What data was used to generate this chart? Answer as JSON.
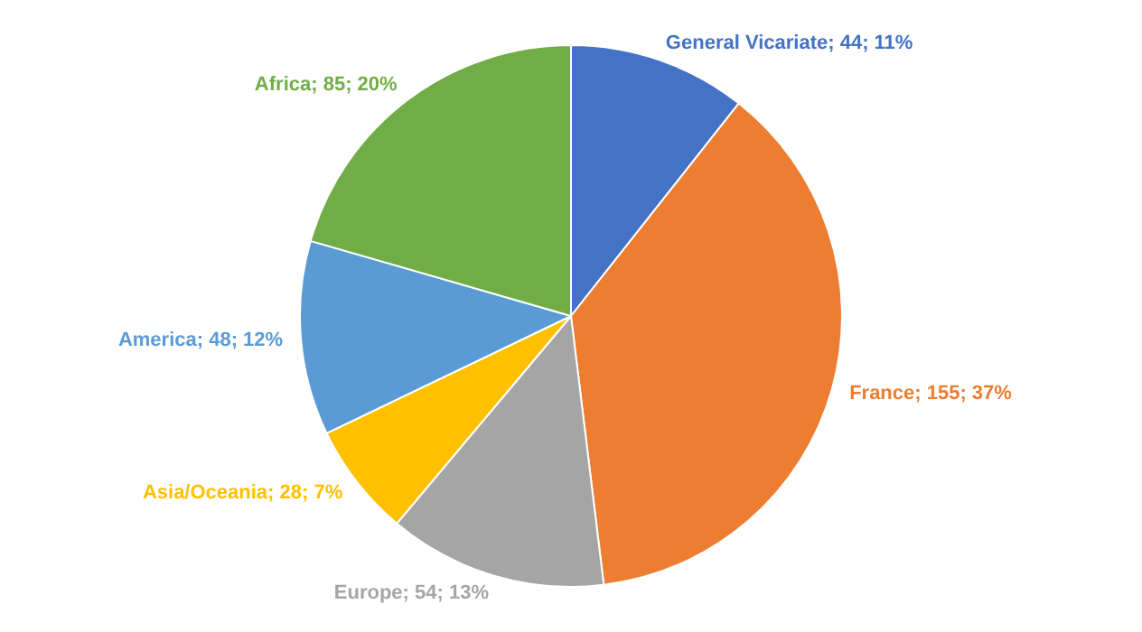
{
  "chart_data": {
    "type": "pie",
    "categories": [
      "General Vicariate",
      "France",
      "Europe",
      "Asia/Oceania",
      "America",
      "Africa"
    ],
    "values": [
      44,
      155,
      54,
      28,
      48,
      85
    ],
    "colors": [
      "#4472c4",
      "#ed7d31",
      "#a5a5a5",
      "#ffc000",
      "#5b9bd5",
      "#70ad47"
    ],
    "value_labels": [
      "44; 11%",
      "155; 37%",
      "54; 13%",
      "28; 7%",
      "48; 12%",
      "85; 20%"
    ],
    "legend": false
  }
}
